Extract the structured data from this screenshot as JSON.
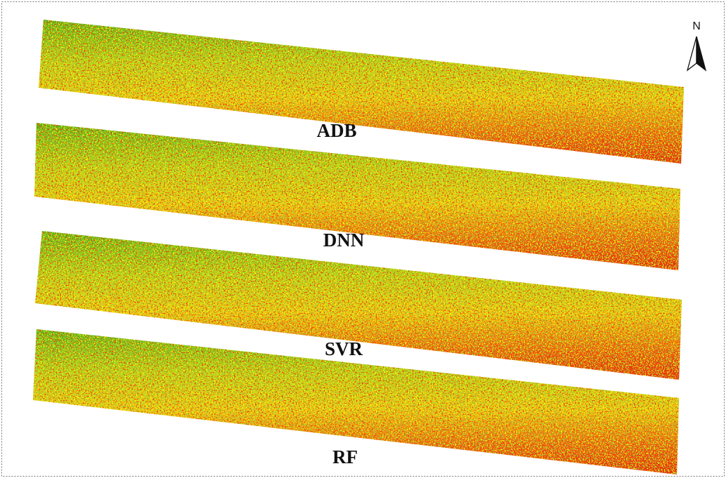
{
  "map": {
    "panels": [
      {
        "label": "ADB"
      },
      {
        "label": "DNN"
      },
      {
        "label": "SVR"
      },
      {
        "label": "RF"
      }
    ],
    "north_arrow": "N"
  }
}
